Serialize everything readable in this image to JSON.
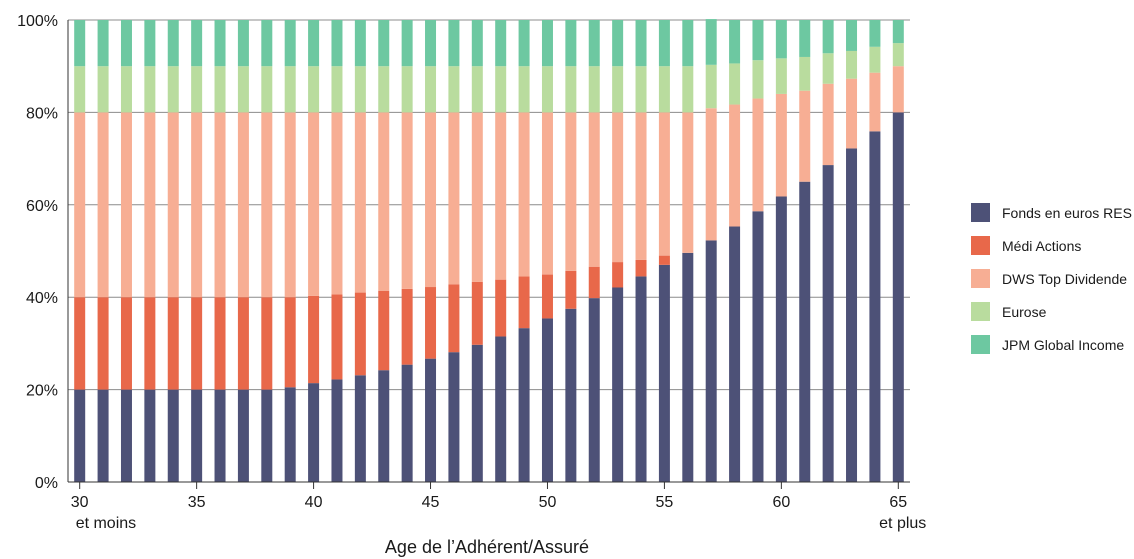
{
  "chart_data": {
    "type": "bar",
    "stacked": true,
    "percent": true,
    "xlabel": "Age de l’Adhérent/Assuré",
    "ylabel": "",
    "ylim": [
      0,
      100
    ],
    "ytick_labels": [
      "0%",
      "20%",
      "40%",
      "60%",
      "80%",
      "100%"
    ],
    "categories": [
      "30",
      "31",
      "32",
      "33",
      "34",
      "35",
      "36",
      "37",
      "38",
      "39",
      "40",
      "41",
      "42",
      "43",
      "44",
      "45",
      "46",
      "47",
      "48",
      "49",
      "50",
      "51",
      "52",
      "53",
      "54",
      "55",
      "56",
      "57",
      "58",
      "59",
      "60",
      "61",
      "62",
      "63",
      "64",
      "65"
    ],
    "xtick_labels": [
      "30",
      "35",
      "40",
      "45",
      "50",
      "55",
      "60",
      "65"
    ],
    "xtick_sublabels": {
      "first": "et moins",
      "last": "et plus"
    },
    "grid": true,
    "legend_position": "right",
    "series": [
      {
        "name": "Fonds en euros RES",
        "color": "#4d5177",
        "values": [
          20,
          20,
          20,
          20,
          20,
          20,
          20,
          20,
          20,
          20.5,
          21.4,
          22.2,
          23.1,
          24.2,
          25.4,
          26.7,
          28.1,
          29.7,
          31.5,
          33.3,
          35.4,
          37.5,
          39.8,
          42.1,
          44.5,
          47,
          49.6,
          52.3,
          55.3,
          58.6,
          61.8,
          65,
          68.6,
          72.2,
          75.9,
          80
        ]
      },
      {
        "name": "Médi Actions",
        "color": "#e8684a",
        "values": [
          20,
          20,
          20,
          20,
          20,
          20,
          20,
          20,
          20,
          19.5,
          18.9,
          18.4,
          17.9,
          17.2,
          16.4,
          15.5,
          14.7,
          13.6,
          12.3,
          11.2,
          9.5,
          8.2,
          6.8,
          5.5,
          3.6,
          2,
          0,
          0,
          0,
          0,
          0,
          0,
          0,
          0,
          0,
          0
        ]
      },
      {
        "name": "DWS Top Dividende",
        "color": "#f7ae94",
        "values": [
          40,
          40,
          40,
          40,
          40,
          40,
          40,
          40,
          40,
          40,
          39.7,
          39.4,
          39,
          38.6,
          38.2,
          37.8,
          37.2,
          36.7,
          36.2,
          35.5,
          35.1,
          34.3,
          33.4,
          32.4,
          31.9,
          31,
          30.4,
          28.6,
          26.4,
          24.4,
          22.2,
          19.7,
          17.6,
          15.1,
          12.7,
          10
        ]
      },
      {
        "name": "Eurose",
        "color": "#b9dc9e",
        "values": [
          10,
          10,
          10,
          10,
          10,
          10,
          10,
          10,
          10,
          10,
          10,
          10,
          10,
          10,
          10,
          10,
          10,
          10,
          10,
          10,
          10,
          10,
          10,
          10,
          10,
          10,
          10,
          9.4,
          8.9,
          8.3,
          7.7,
          7.3,
          6.6,
          6,
          5.6,
          5
        ]
      },
      {
        "name": "JPM Global Income",
        "color": "#6dc8a1",
        "values": [
          10,
          10,
          10,
          10,
          10,
          10,
          10,
          10,
          10,
          10,
          10,
          10,
          10,
          10,
          10,
          10,
          10,
          10,
          10,
          10,
          10,
          10,
          10,
          10,
          10,
          10,
          10,
          9.9,
          9.4,
          8.7,
          8.3,
          8,
          7.2,
          6.7,
          5.8,
          5
        ]
      }
    ]
  }
}
